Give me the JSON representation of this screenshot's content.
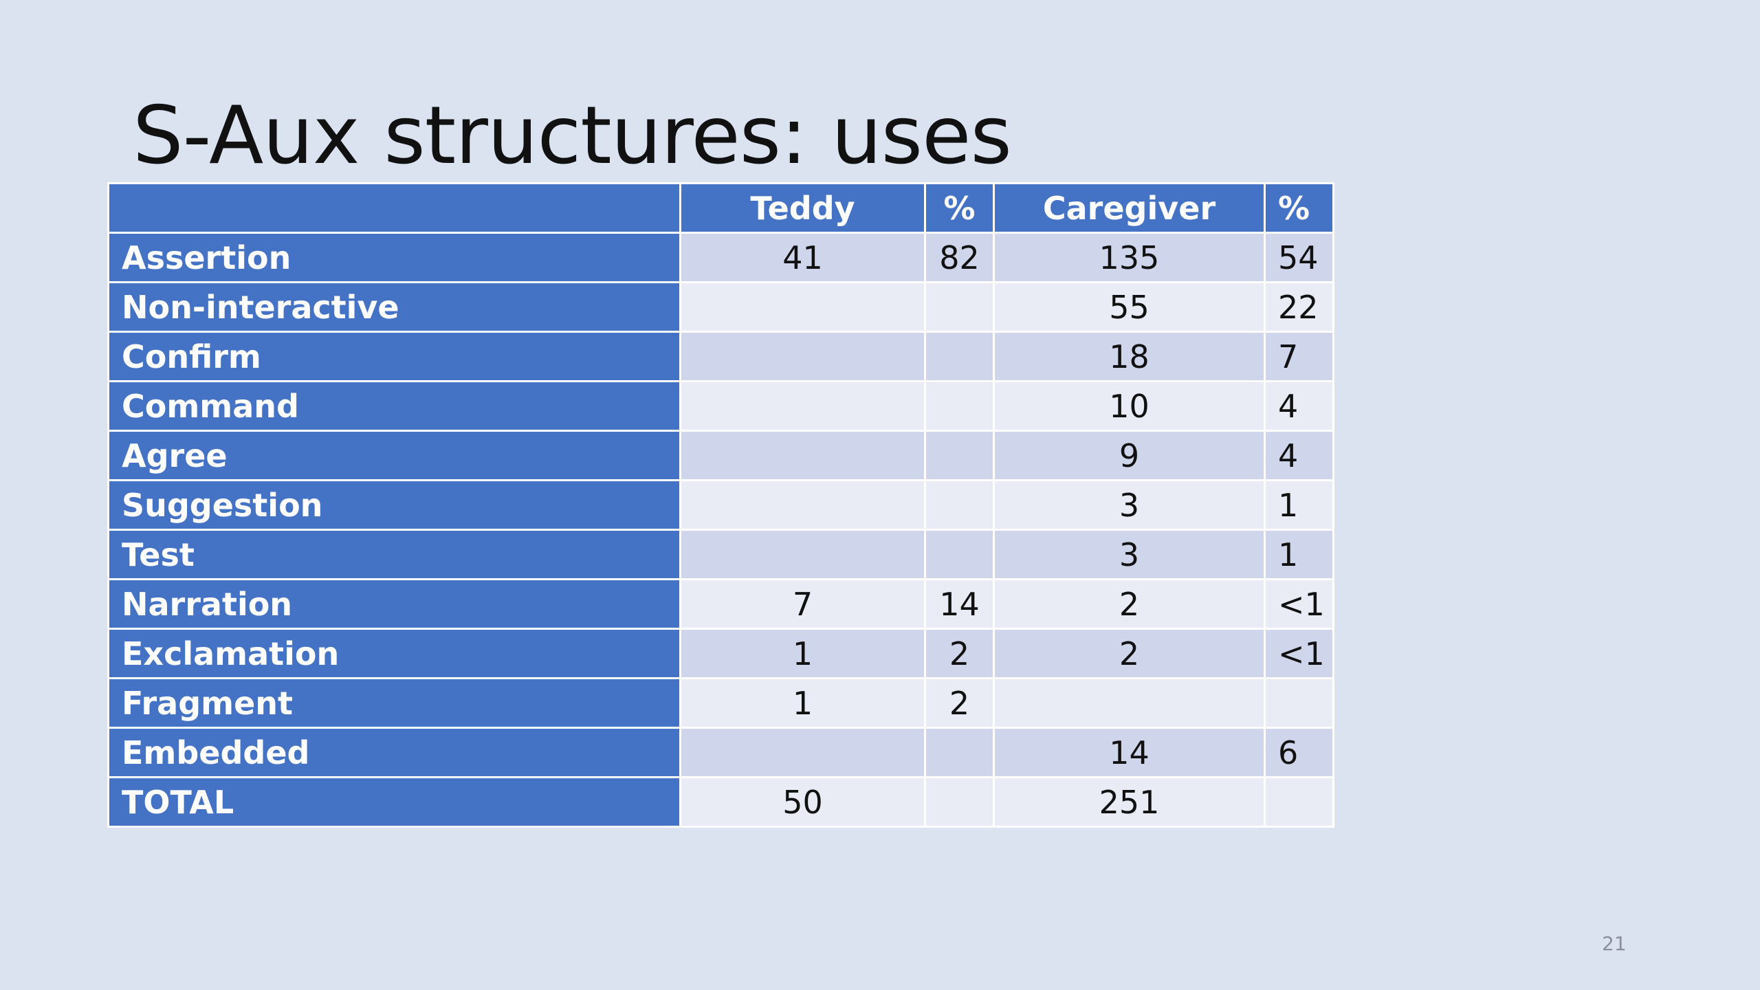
{
  "slide": {
    "title": "S-Aux structures: uses",
    "page_number": "21"
  },
  "colors": {
    "background": "#dbe3f1",
    "header_fill": "#4472c4",
    "band_dark": "#cfd5ea",
    "band_light": "#e9ebf5"
  },
  "table": {
    "headers": [
      "",
      "Teddy",
      "%",
      "Caregiver",
      "%"
    ],
    "rows": [
      {
        "label": "Assertion",
        "teddy": "41",
        "teddy_pct": "82",
        "caregiver": "135",
        "caregiver_pct": "54"
      },
      {
        "label": "Non-interactive",
        "teddy": "",
        "teddy_pct": "",
        "caregiver": "55",
        "caregiver_pct": "22"
      },
      {
        "label": "Confirm",
        "teddy": "",
        "teddy_pct": "",
        "caregiver": "18",
        "caregiver_pct": "7"
      },
      {
        "label": "Command",
        "teddy": "",
        "teddy_pct": "",
        "caregiver": "10",
        "caregiver_pct": "4"
      },
      {
        "label": "Agree",
        "teddy": "",
        "teddy_pct": "",
        "caregiver": "9",
        "caregiver_pct": "4"
      },
      {
        "label": "Suggestion",
        "teddy": "",
        "teddy_pct": "",
        "caregiver": "3",
        "caregiver_pct": "1"
      },
      {
        "label": "Test",
        "teddy": "",
        "teddy_pct": "",
        "caregiver": "3",
        "caregiver_pct": "1"
      },
      {
        "label": "Narration",
        "teddy": "7",
        "teddy_pct": "14",
        "caregiver": "2",
        "caregiver_pct": "<1"
      },
      {
        "label": "Exclamation",
        "teddy": "1",
        "teddy_pct": "2",
        "caregiver": "2",
        "caregiver_pct": "<1"
      },
      {
        "label": "Fragment",
        "teddy": "1",
        "teddy_pct": "2",
        "caregiver": "",
        "caregiver_pct": ""
      },
      {
        "label": "Embedded",
        "teddy": "",
        "teddy_pct": "",
        "caregiver": "14",
        "caregiver_pct": "6"
      },
      {
        "label": "TOTAL",
        "teddy": "50",
        "teddy_pct": "",
        "caregiver": "251",
        "caregiver_pct": ""
      }
    ]
  }
}
